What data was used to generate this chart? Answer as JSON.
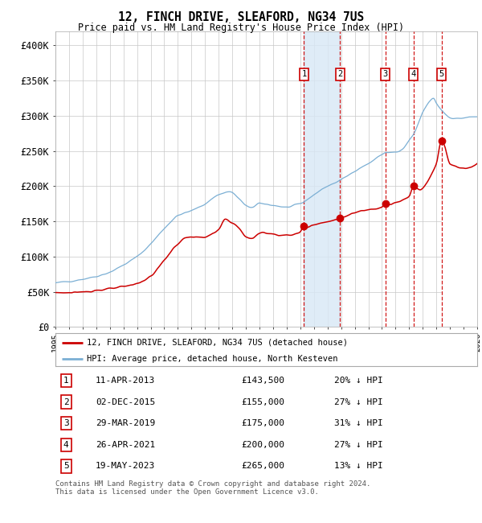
{
  "title": "12, FINCH DRIVE, SLEAFORD, NG34 7US",
  "subtitle": "Price paid vs. HM Land Registry's House Price Index (HPI)",
  "hpi_color": "#7bafd4",
  "property_color": "#cc0000",
  "background_color": "#ffffff",
  "chart_bg": "#ffffff",
  "grid_color": "#c8c8c8",
  "ylim": [
    0,
    420000
  ],
  "yticks": [
    0,
    50000,
    100000,
    150000,
    200000,
    250000,
    300000,
    350000,
    400000
  ],
  "ytick_labels": [
    "£0",
    "£50K",
    "£100K",
    "£150K",
    "£200K",
    "£250K",
    "£300K",
    "£350K",
    "£400K"
  ],
  "legend_property": "12, FINCH DRIVE, SLEAFORD, NG34 7US (detached house)",
  "legend_hpi": "HPI: Average price, detached house, North Kesteven",
  "transactions": [
    {
      "num": 1,
      "date": "11-APR-2013",
      "price": 143500,
      "pct": "20%",
      "year_x": 2013.27
    },
    {
      "num": 2,
      "date": "02-DEC-2015",
      "price": 155000,
      "pct": "27%",
      "year_x": 2015.92
    },
    {
      "num": 3,
      "date": "29-MAR-2019",
      "price": 175000,
      "pct": "31%",
      "year_x": 2019.24
    },
    {
      "num": 4,
      "date": "26-APR-2021",
      "price": 200000,
      "pct": "27%",
      "year_x": 2021.32
    },
    {
      "num": 5,
      "date": "19-MAY-2023",
      "price": 265000,
      "pct": "13%",
      "year_x": 2023.38
    }
  ],
  "footer": "Contains HM Land Registry data © Crown copyright and database right 2024.\nThis data is licensed under the Open Government Licence v3.0.",
  "xmin": 1995.0,
  "xmax": 2026.0
}
